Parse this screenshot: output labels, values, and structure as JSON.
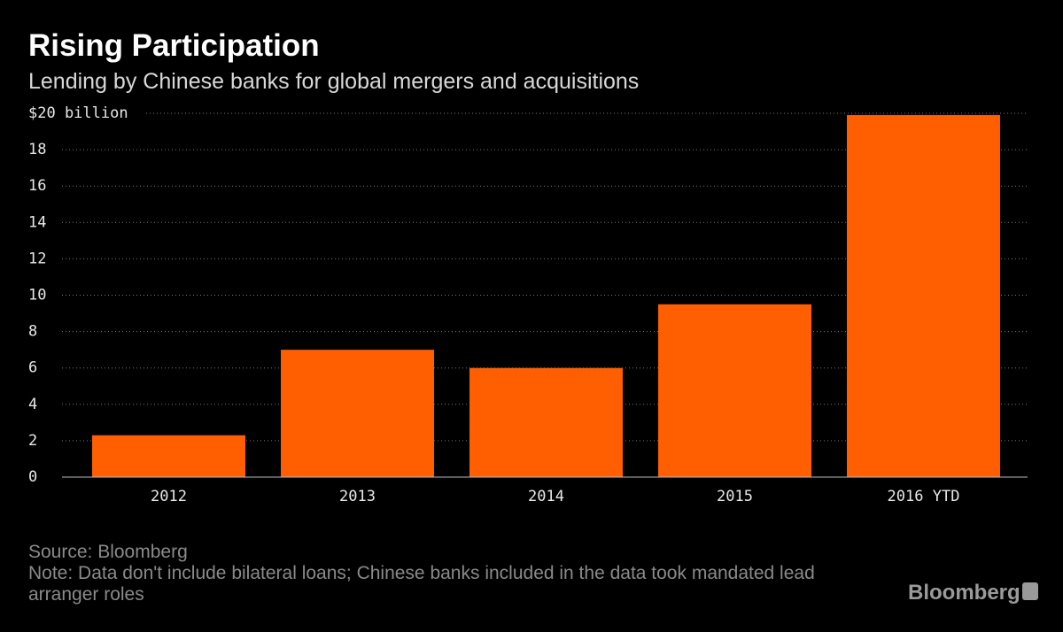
{
  "chart_data": {
    "type": "bar",
    "title": "Rising Participation",
    "subtitle": "Lending by Chinese banks for global mergers and acquisitions",
    "categories": [
      "2012",
      "2013",
      "2014",
      "2015",
      "2016 YTD"
    ],
    "values": [
      2.3,
      7.0,
      6.0,
      9.5,
      19.9
    ],
    "color": "#ff5f00",
    "ylim": [
      0,
      20
    ],
    "yticks": [
      0,
      2,
      4,
      6,
      8,
      10,
      12,
      14,
      16,
      18,
      {
        "value": 20,
        "label": "$20 billion"
      }
    ],
    "grid": true,
    "source": "Source: Bloomberg",
    "note": "Note: Data don't include bilateral loans; Chinese banks included in the data took mandated lead arranger roles",
    "logo": "Bloomberg"
  }
}
